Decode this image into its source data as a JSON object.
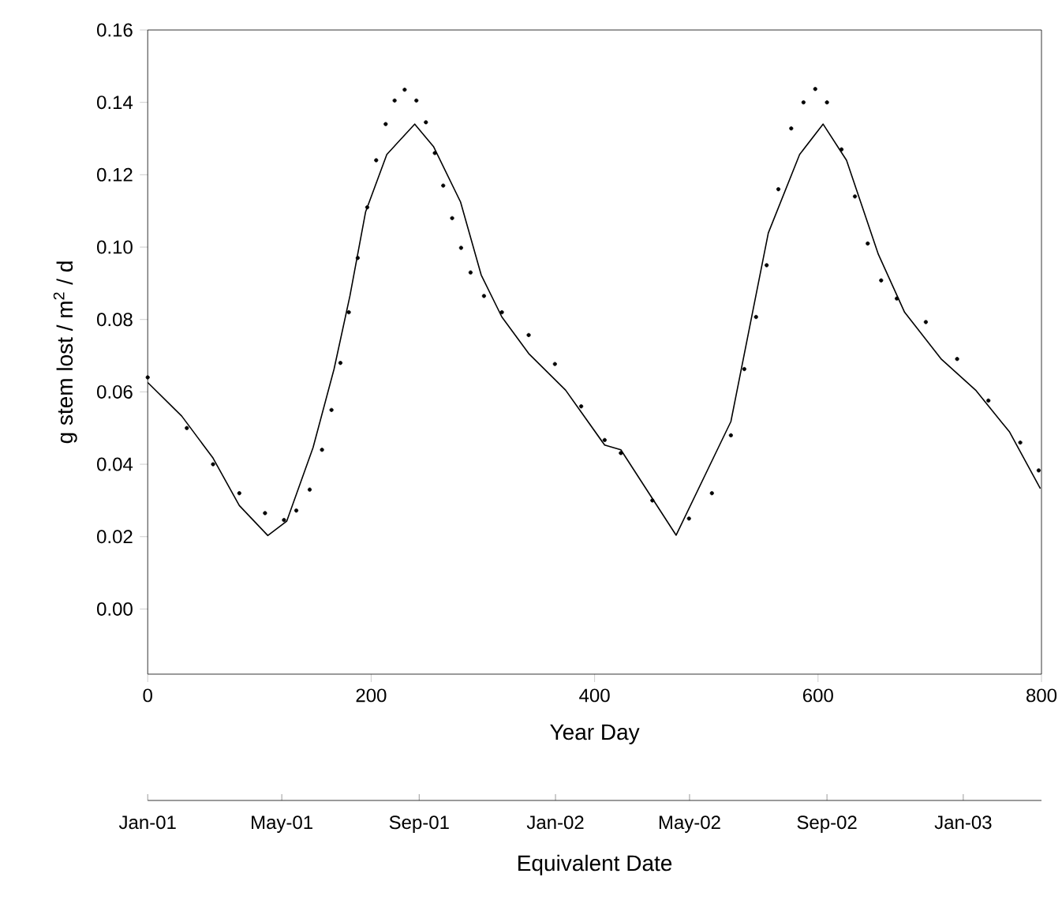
{
  "chart_data": {
    "type": "line",
    "xlabel": "Year Day",
    "ylabel": "g stem lost / m$^{2}$ / d",
    "xlim": [
      0,
      800
    ],
    "xticks": [
      0,
      200,
      400,
      600,
      800
    ],
    "ylim": [
      -0.018,
      0.16
    ],
    "yticks": [
      {
        "value": 0,
        "label": "0.00"
      },
      {
        "value": 0.02,
        "label": "0.02"
      },
      {
        "value": 0.04,
        "label": "0.04"
      },
      {
        "value": 0.06,
        "label": "0.06"
      },
      {
        "value": 0.08,
        "label": "0.08"
      },
      {
        "value": 0.1,
        "label": "0.10"
      },
      {
        "value": 0.12,
        "label": "0.12"
      },
      {
        "value": 0.14,
        "label": "0.14"
      },
      {
        "value": 0.16,
        "label": "0.16"
      }
    ],
    "x2label": "Equivalent Date",
    "x2lim": [
      "2001-01-01",
      "2003-03-12"
    ],
    "x2ticks": [
      {
        "value": "2001-01-01",
        "label": "Jan-01"
      },
      {
        "value": "2001-05-01",
        "label": "May-01"
      },
      {
        "value": "2001-09-01",
        "label": "Sep-01"
      },
      {
        "value": "2002-01-01",
        "label": "Jan-02"
      },
      {
        "value": "2002-05-01",
        "label": "May-02"
      },
      {
        "value": "2002-09-01",
        "label": "Sep-02"
      },
      {
        "value": "2003-01-01",
        "label": "Jan-03"
      }
    ],
    "series": [
      {
        "type": "scatter",
        "marker": "circle",
        "color": "#000000",
        "x": [
          0,
          35,
          58.5,
          82,
          105,
          122,
          133,
          145,
          156,
          164.5,
          172.5,
          180,
          188,
          196.5,
          204.5,
          213,
          221,
          230,
          240.5,
          249,
          257,
          264.5,
          272.5,
          280.5,
          289,
          301,
          317,
          341,
          364.5,
          388,
          409,
          423.5,
          451.7,
          484.5,
          505,
          522,
          534,
          544.5,
          554,
          564.5,
          576,
          587,
          597.5,
          608,
          621,
          633,
          644.5,
          656.5,
          670.5,
          696.5,
          724.5,
          752.5,
          781,
          797.5
        ],
        "values": [
          0.064,
          0.05,
          0.04,
          0.032,
          0.0265,
          0.0246,
          0.0272,
          0.033,
          0.044,
          0.055,
          0.068,
          0.082,
          0.097,
          0.111,
          0.124,
          0.134,
          0.1405,
          0.1435,
          0.1405,
          0.1345,
          0.126,
          0.117,
          0.108,
          0.0998,
          0.093,
          0.0865,
          0.082,
          0.0757,
          0.0677,
          0.056,
          0.0467,
          0.0431,
          0.03,
          0.025,
          0.032,
          0.048,
          0.0663,
          0.0807,
          0.095,
          0.116,
          0.1328,
          0.14,
          0.1437,
          0.14,
          0.127,
          0.114,
          0.101,
          0.0908,
          0.0858,
          0.0793,
          0.0691,
          0.0576,
          0.046,
          0.0383
        ]
      },
      {
        "type": "line",
        "color": "#000000",
        "x": [
          0,
          30.5,
          58.5,
          82,
          107.5,
          124.5,
          148,
          166.8,
          181,
          195,
          214,
          239,
          256,
          280,
          298.5,
          317,
          341,
          374,
          409,
          423.5,
          473,
          522,
          555.5,
          583.5,
          604.5,
          625.5,
          654,
          677.5,
          710.5,
          741,
          771.5,
          799
        ],
        "values": [
          0.0626,
          0.0533,
          0.0417,
          0.0286,
          0.0203,
          0.0243,
          0.0446,
          0.0663,
          0.0865,
          0.1097,
          0.1256,
          0.134,
          0.1277,
          0.1125,
          0.0923,
          0.0807,
          0.0706,
          0.0605,
          0.0453,
          0.044,
          0.0204,
          0.0518,
          0.1039,
          0.1256,
          0.134,
          0.124,
          0.098,
          0.082,
          0.069,
          0.0605,
          0.0489,
          0.0333
        ]
      }
    ]
  }
}
